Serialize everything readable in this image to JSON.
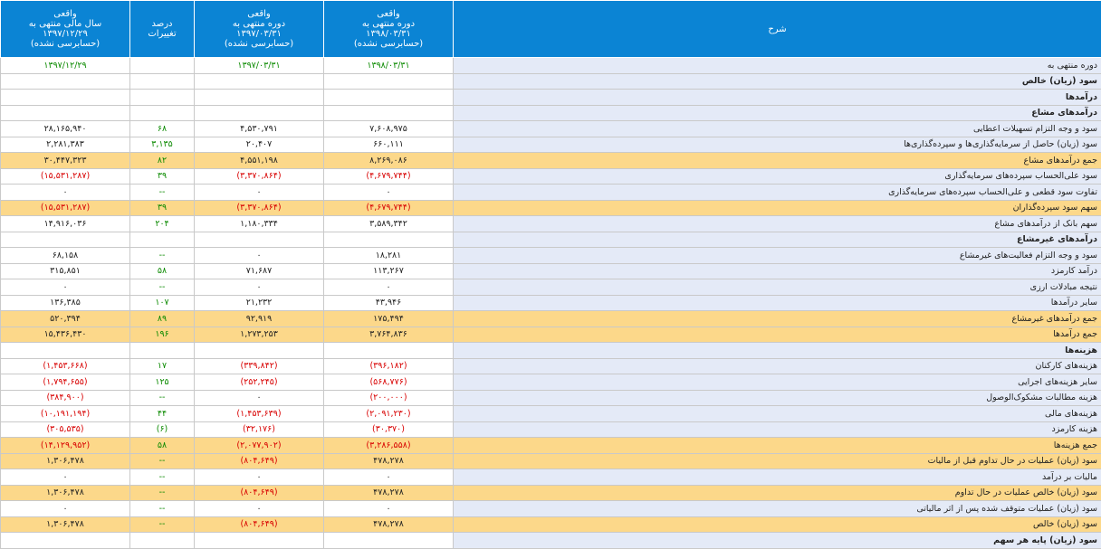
{
  "headers": {
    "desc": "شرح",
    "c1": [
      "واقعی",
      "دوره منتهی به",
      "۱۳۹۸/۰۳/۳۱",
      "(حسابرسی نشده)"
    ],
    "c2": [
      "واقعی",
      "دوره منتهی به",
      "۱۳۹۷/۰۳/۳۱",
      "(حسابرسی نشده)"
    ],
    "pct": [
      "درصد",
      "تغییرات"
    ],
    "c4": [
      "واقعی",
      "سال مالی منتهی به",
      "۱۳۹۷/۱۲/۲۹",
      "(حسابرسی نشده)"
    ]
  },
  "rows": [
    {
      "label": "دوره منتهی به",
      "c1": "۱۳۹۸/۰۳/۳۱",
      "c2": "۱۳۹۷/۰۳/۳۱",
      "pct": "",
      "c4": "۱۳۹۷/۱۲/۲۹",
      "style": "date"
    },
    {
      "label": "سود (زیان) خالص",
      "c1": "",
      "c2": "",
      "pct": "",
      "c4": "",
      "style": "bold"
    },
    {
      "label": "درآمدها",
      "c1": "",
      "c2": "",
      "pct": "",
      "c4": "",
      "style": "bold"
    },
    {
      "label": "درآمدهای مشاع",
      "c1": "",
      "c2": "",
      "pct": "",
      "c4": "",
      "style": "bold"
    },
    {
      "label": "سود و وجه التزام تسهیلات اعطایی",
      "c1": "۷,۶۰۸,۹۷۵",
      "c2": "۴,۵۳۰,۷۹۱",
      "pct": "۶۸",
      "c4": "۲۸,۱۶۵,۹۴۰"
    },
    {
      "label": "سود (زیان) حاصل از سرمایه‌گذاری‌ها و سپرده‌گذاری‌ها",
      "c1": "۶۶۰,۱۱۱",
      "c2": "۲۰,۴۰۷",
      "pct": "۳,۱۳۵",
      "c4": "۲,۲۸۱,۳۸۳"
    },
    {
      "label": "جمع درآمدهای مشاع",
      "c1": "۸,۲۶۹,۰۸۶",
      "c2": "۴,۵۵۱,۱۹۸",
      "pct": "۸۲",
      "c4": "۳۰,۴۴۷,۳۲۳",
      "style": "hl"
    },
    {
      "label": "سود علی‌الحساب سپرده‌های سرمایه‌گذاری",
      "c1": "(۴,۶۷۹,۷۴۴)",
      "c2": "(۳,۳۷۰,۸۶۴)",
      "pct": "۳۹",
      "c4": "(۱۵,۵۳۱,۲۸۷)",
      "neg": true
    },
    {
      "label": "تفاوت سود قطعی و علی‌الحساب سپرده‌های سرمایه‌گذاری",
      "c1": "۰",
      "c2": "۰",
      "pct": "--",
      "c4": "۰"
    },
    {
      "label": "سهم سود سپرده‌گذاران",
      "c1": "(۴,۶۷۹,۷۴۴)",
      "c2": "(۳,۳۷۰,۸۶۴)",
      "pct": "۳۹",
      "c4": "(۱۵,۵۳۱,۲۸۷)",
      "style": "hl",
      "neg": true
    },
    {
      "label": "سهم بانک از درآمدهای مشاع",
      "c1": "۳,۵۸۹,۳۴۲",
      "c2": "۱,۱۸۰,۳۳۴",
      "pct": "۲۰۴",
      "c4": "۱۴,۹۱۶,۰۳۶"
    },
    {
      "label": "درآمدهای غیرمشاع",
      "c1": "",
      "c2": "",
      "pct": "",
      "c4": "",
      "style": "bold"
    },
    {
      "label": "سود و وجه التزام فعالیت‌های غیرمشاع",
      "c1": "۱۸,۲۸۱",
      "c2": "۰",
      "pct": "--",
      "c4": "۶۸,۱۵۸"
    },
    {
      "label": "درآمد کارمزد",
      "c1": "۱۱۳,۲۶۷",
      "c2": "۷۱,۶۸۷",
      "pct": "۵۸",
      "c4": "۳۱۵,۸۵۱"
    },
    {
      "label": "نتیجه مبادلات ارزی",
      "c1": "۰",
      "c2": "۰",
      "pct": "--",
      "c4": "۰"
    },
    {
      "label": "سایر درآمدها",
      "c1": "۴۳,۹۴۶",
      "c2": "۲۱,۲۳۲",
      "pct": "۱۰۷",
      "c4": "۱۳۶,۳۸۵"
    },
    {
      "label": "جمع درآمدهای غیرمشاع",
      "c1": "۱۷۵,۴۹۴",
      "c2": "۹۲,۹۱۹",
      "pct": "۸۹",
      "c4": "۵۲۰,۳۹۴",
      "style": "hl"
    },
    {
      "label": "جمع درآمدها",
      "c1": "۳,۷۶۴,۸۳۶",
      "c2": "۱,۲۷۳,۲۵۳",
      "pct": "۱۹۶",
      "c4": "۱۵,۴۳۶,۴۳۰",
      "style": "hl"
    },
    {
      "label": "هزینه‌ها",
      "c1": "",
      "c2": "",
      "pct": "",
      "c4": "",
      "style": "bold"
    },
    {
      "label": "هزینه‌های کارکنان",
      "c1": "(۳۹۶,۱۸۲)",
      "c2": "(۳۳۹,۸۴۲)",
      "pct": "۱۷",
      "c4": "(۱,۴۵۳,۶۶۸)",
      "neg": true
    },
    {
      "label": "سایر هزینه‌های اجرایی",
      "c1": "(۵۶۸,۷۷۶)",
      "c2": "(۲۵۲,۲۴۵)",
      "pct": "۱۲۵",
      "c4": "(۱,۷۹۴,۶۵۵)",
      "neg": true
    },
    {
      "label": "هزینه مطالبات مشکوک‌الوصول",
      "c1": "(۲۰۰,۰۰۰)",
      "c2": "۰",
      "pct": "--",
      "c4": "(۳۸۴,۹۰۰)",
      "neg": true
    },
    {
      "label": "هزینه‌های مالی",
      "c1": "(۲,۰۹۱,۲۳۰)",
      "c2": "(۱,۴۵۳,۶۳۹)",
      "pct": "۴۴",
      "c4": "(۱۰,۱۹۱,۱۹۴)",
      "neg": true
    },
    {
      "label": "هزینه کارمزد",
      "c1": "(۳۰,۳۷۰)",
      "c2": "(۳۲,۱۷۶)",
      "pct": "(۶)",
      "c4": "(۳۰۵,۵۳۵)",
      "neg": true
    },
    {
      "label": "جمع هزینه‌ها",
      "c1": "(۳,۲۸۶,۵۵۸)",
      "c2": "(۲,۰۷۷,۹۰۲)",
      "pct": "۵۸",
      "c4": "(۱۴,۱۲۹,۹۵۲)",
      "style": "hl",
      "neg": true
    },
    {
      "label": "سود (زیان) عملیات در حال تداوم قبل از مالیات",
      "c1": "۴۷۸,۲۷۸",
      "c2": "(۸۰۴,۶۴۹)",
      "pct": "--",
      "c4": "۱,۳۰۶,۴۷۸",
      "style": "hl"
    },
    {
      "label": "مالیات بر درآمد",
      "c1": "۰",
      "c2": "۰",
      "pct": "--",
      "c4": "۰"
    },
    {
      "label": "سود (زیان) خالص عملیات در حال تداوم",
      "c1": "۴۷۸,۲۷۸",
      "c2": "(۸۰۴,۶۴۹)",
      "pct": "--",
      "c4": "۱,۳۰۶,۴۷۸",
      "style": "hl"
    },
    {
      "label": "سود (زیان) عملیات متوقف شده پس از اثر مالیاتی",
      "c1": "۰",
      "c2": "۰",
      "pct": "--",
      "c4": "۰"
    },
    {
      "label": "سود (زیان) خالص",
      "c1": "۴۷۸,۲۷۸",
      "c2": "(۸۰۴,۶۴۹)",
      "pct": "--",
      "c4": "۱,۳۰۶,۴۷۸",
      "style": "hl"
    },
    {
      "label": "سود (زیان) پایه هر سهم",
      "c1": "",
      "c2": "",
      "pct": "",
      "c4": "",
      "style": "bold"
    }
  ]
}
